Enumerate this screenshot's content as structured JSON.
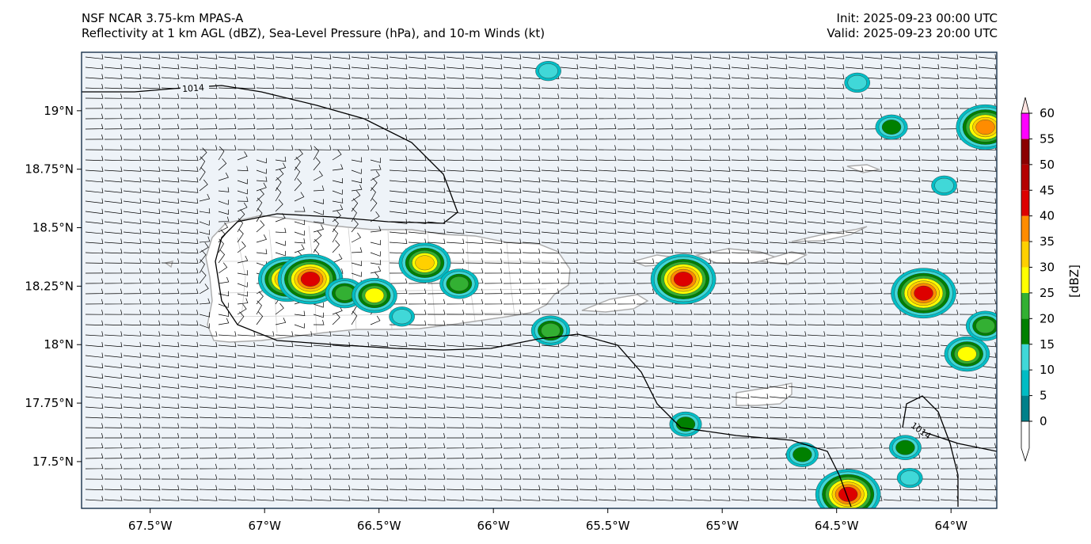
{
  "header": {
    "model_title": "NSF NCAR 3.75-km MPAS-A",
    "fields_title": "Reflectivity at 1 km AGL (dBZ), Sea-Level Pressure (hPa), and 10-m Winds (kt)",
    "init_label": "Init: 2025-09-23 00:00 UTC",
    "valid_label": "Valid: 2025-09-23 20:00 UTC"
  },
  "map": {
    "lon_range": [
      -67.8,
      -63.8
    ],
    "lat_range": [
      17.3,
      19.25
    ],
    "ocean_color": "#eef3f8",
    "coast_color": "#aaaaaa",
    "lon_ticks": [
      {
        "value": -67.5,
        "label": "67.5°W"
      },
      {
        "value": -67.0,
        "label": "67°W"
      },
      {
        "value": -66.5,
        "label": "66.5°W"
      },
      {
        "value": -66.0,
        "label": "66°W"
      },
      {
        "value": -65.5,
        "label": "65.5°W"
      },
      {
        "value": -65.0,
        "label": "65°W"
      },
      {
        "value": -64.5,
        "label": "64.5°W"
      },
      {
        "value": -64.0,
        "label": "64°W"
      }
    ],
    "lat_ticks": [
      {
        "value": 19.0,
        "label": "19°N"
      },
      {
        "value": 18.75,
        "label": "18.75°N"
      },
      {
        "value": 18.5,
        "label": "18.5°N"
      },
      {
        "value": 18.25,
        "label": "18.25°N"
      },
      {
        "value": 18.0,
        "label": "18°N"
      },
      {
        "value": 17.75,
        "label": "17.75°N"
      },
      {
        "value": 17.5,
        "label": "17.5°N"
      }
    ],
    "isobar_labels": [
      "1014",
      "1014"
    ],
    "reflectivity_cells": [
      {
        "lon": -66.9,
        "lat": 18.28,
        "dbz": 35
      },
      {
        "lon": -66.8,
        "lat": 18.28,
        "dbz": 40
      },
      {
        "lon": -66.65,
        "lat": 18.22,
        "dbz": 20
      },
      {
        "lon": -66.52,
        "lat": 18.21,
        "dbz": 25
      },
      {
        "lon": -66.3,
        "lat": 18.35,
        "dbz": 30
      },
      {
        "lon": -66.15,
        "lat": 18.26,
        "dbz": 20
      },
      {
        "lon": -66.4,
        "lat": 18.12,
        "dbz": 10
      },
      {
        "lon": -65.75,
        "lat": 18.06,
        "dbz": 20
      },
      {
        "lon": -65.17,
        "lat": 18.28,
        "dbz": 40
      },
      {
        "lon": -64.12,
        "lat": 18.22,
        "dbz": 40
      },
      {
        "lon": -63.93,
        "lat": 17.96,
        "dbz": 25
      },
      {
        "lon": -63.85,
        "lat": 18.08,
        "dbz": 20
      },
      {
        "lon": -63.85,
        "lat": 18.93,
        "dbz": 35
      },
      {
        "lon": -64.26,
        "lat": 18.93,
        "dbz": 15
      },
      {
        "lon": -64.03,
        "lat": 18.68,
        "dbz": 10
      },
      {
        "lon": -64.41,
        "lat": 19.12,
        "dbz": 10
      },
      {
        "lon": -65.76,
        "lat": 19.17,
        "dbz": 10
      },
      {
        "lon": -64.45,
        "lat": 17.36,
        "dbz": 40
      },
      {
        "lon": -64.2,
        "lat": 17.56,
        "dbz": 15
      },
      {
        "lon": -64.65,
        "lat": 17.53,
        "dbz": 15
      },
      {
        "lon": -65.16,
        "lat": 17.66,
        "dbz": 15
      },
      {
        "lon": -64.18,
        "lat": 17.43,
        "dbz": 10
      }
    ]
  },
  "colorbar": {
    "unit_label": "[dBZ]",
    "levels": [
      "0",
      "5",
      "10",
      "15",
      "20",
      "25",
      "30",
      "35",
      "40",
      "45",
      "50",
      "55",
      "60"
    ],
    "colors": [
      "#00808a",
      "#00bcc4",
      "#40d8d8",
      "#008000",
      "#33b033",
      "#ffff00",
      "#ffd000",
      "#ff8c00",
      "#dd0000",
      "#b40000",
      "#8b0000",
      "#ff00ff",
      "#ffe4e1"
    ]
  }
}
